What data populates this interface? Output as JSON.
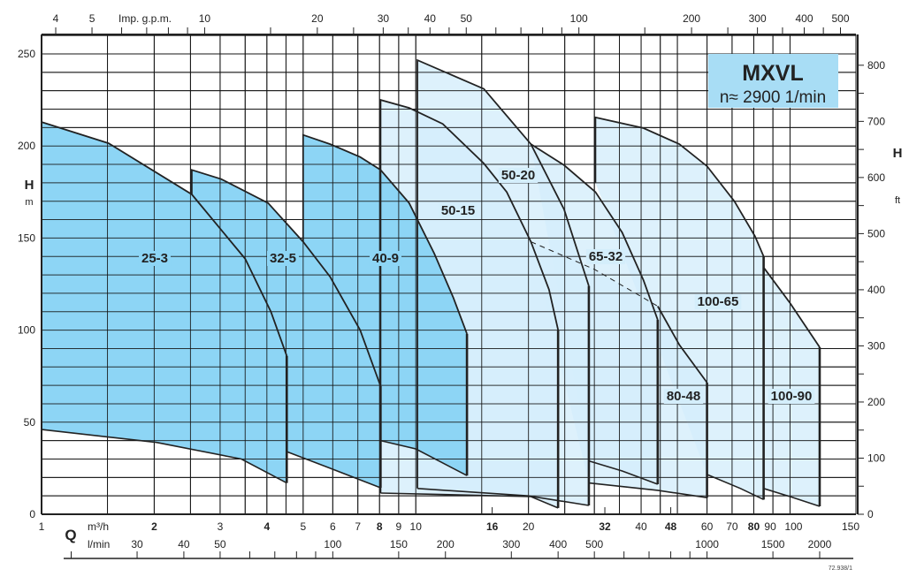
{
  "chart_data": {
    "type": "line",
    "title": "MXVL",
    "subtitle": "n≈ 2900 1/min",
    "x_scale": "log",
    "xlim": [
      1,
      150
    ],
    "ylim": [
      0,
      260
    ],
    "grid": true,
    "colors": {
      "small_pumps_fill": "#8dd5f5",
      "large_pumps_fill": "#d4eefb",
      "box_fill": "#a8ddf5",
      "line": "#222222"
    },
    "axes": {
      "left": {
        "label": "H",
        "unit": "m",
        "ticks": [
          0,
          50,
          100,
          150,
          200,
          250
        ]
      },
      "right": {
        "label": "H",
        "unit": "ft",
        "ticks": [
          0,
          100,
          200,
          300,
          400,
          500,
          600,
          700,
          800
        ]
      },
      "top": {
        "label": "Imp. g.p.m.",
        "ticks": [
          4,
          5,
          10,
          20,
          30,
          40,
          50,
          100,
          200,
          300,
          400,
          500
        ]
      },
      "bottom_q": {
        "label": "Q",
        "unit": "m³/h",
        "ticks": [
          "1",
          "2",
          "3",
          "4",
          "5",
          "6",
          "7",
          "8",
          "9",
          "10",
          "16",
          "20",
          "32",
          "40",
          "48",
          "60",
          "70",
          "80",
          "90",
          "100",
          "150"
        ],
        "bold_ticks": [
          "2",
          "4",
          "8",
          "16",
          "32",
          "48",
          "80"
        ]
      },
      "bottom_lmin": {
        "unit": "l/min",
        "ticks": [
          30,
          40,
          50,
          100,
          150,
          200,
          300,
          400,
          500,
          1000,
          1500,
          2000
        ]
      }
    },
    "series": [
      {
        "name": "25-3",
        "shade": "dark",
        "upper": [
          [
            1,
            213
          ],
          [
            1.51,
            201.5
          ],
          [
            2.52,
            173.7
          ],
          [
            3.5,
            138.7
          ],
          [
            4.1,
            110
          ],
          [
            4.52,
            86
          ]
        ],
        "lower": [
          [
            1,
            46
          ],
          [
            2.03,
            39
          ],
          [
            3.42,
            30
          ],
          [
            4.52,
            17
          ]
        ]
      },
      {
        "name": "32-5",
        "shade": "dark",
        "upper": [
          [
            2.52,
            173.7
          ],
          [
            2.52,
            187
          ],
          [
            3.02,
            182
          ],
          [
            4.03,
            169
          ],
          [
            5.0,
            148
          ],
          [
            5.9,
            129
          ],
          [
            7.1,
            100
          ],
          [
            8.05,
            69.6
          ]
        ],
        "lower": [
          [
            4.52,
            34
          ],
          [
            5.9,
            25
          ],
          [
            8.05,
            14.4
          ]
        ]
      },
      {
        "name": "40-9",
        "shade": "dark",
        "upper": [
          [
            5.0,
            148
          ],
          [
            5.0,
            206
          ],
          [
            5.9,
            201
          ],
          [
            7.1,
            194
          ],
          [
            8.05,
            187
          ],
          [
            9.6,
            169
          ],
          [
            11.2,
            141.6
          ],
          [
            12.6,
            117.6
          ],
          [
            13.7,
            98
          ]
        ],
        "lower": [
          [
            8.05,
            40
          ],
          [
            10,
            35.5
          ],
          [
            13.7,
            21
          ]
        ]
      },
      {
        "name": "50-15",
        "shade": "light",
        "upper": [
          [
            8.05,
            11.5
          ],
          [
            8.05,
            225
          ],
          [
            9.6,
            220.7
          ],
          [
            11.8,
            212
          ],
          [
            15.2,
            190.5
          ],
          [
            17.5,
            175
          ],
          [
            20.3,
            148
          ],
          [
            22.7,
            122
          ],
          [
            24,
            100
          ]
        ],
        "lower": [
          [
            8.05,
            11.5
          ],
          [
            20.3,
            9.6
          ],
          [
            24,
            3.4
          ]
        ]
      },
      {
        "name": "50-20",
        "shade": "light",
        "upper": [
          [
            10.1,
            14
          ],
          [
            10.1,
            246.6
          ],
          [
            15.2,
            231
          ],
          [
            20.3,
            201
          ],
          [
            24.9,
            165.6
          ],
          [
            29,
            124
          ]
        ],
        "lower": [
          [
            10.1,
            14
          ],
          [
            20,
            10
          ],
          [
            29,
            4.8
          ]
        ]
      },
      {
        "name": "65-32",
        "shade": "light",
        "upper": [
          [
            20.3,
            201
          ],
          [
            24.9,
            189.6
          ],
          [
            30.2,
            175
          ],
          [
            35.6,
            153
          ],
          [
            40.6,
            127
          ],
          [
            44.3,
            105.6
          ]
        ],
        "lower": [
          [
            29,
            29
          ],
          [
            35.6,
            23.5
          ],
          [
            44.3,
            16.3
          ]
        ]
      },
      {
        "name": "80-48",
        "shade": "light",
        "hidden_upper": [
          [
            20.3,
            148
          ],
          [
            30,
            133
          ],
          [
            44.3,
            113
          ]
        ],
        "upper": [
          [
            44.3,
            113
          ],
          [
            50.6,
            92
          ],
          [
            60,
            71.5
          ]
        ],
        "lower": [
          [
            29,
            17
          ],
          [
            44.3,
            13
          ],
          [
            60,
            9
          ]
        ]
      },
      {
        "name": "100-65",
        "shade": "light",
        "upper": [
          [
            30.2,
            180
          ],
          [
            30.2,
            215.5
          ],
          [
            40.6,
            209.7
          ],
          [
            50.6,
            201
          ],
          [
            60,
            189
          ],
          [
            71,
            170
          ],
          [
            80.6,
            151
          ],
          [
            85,
            140
          ]
        ],
        "lower": [
          [
            60,
            21.6
          ],
          [
            73.7,
            14
          ],
          [
            85,
            8
          ]
        ]
      },
      {
        "name": "100-90",
        "shade": "light",
        "upper": [
          [
            85,
            134
          ],
          [
            100,
            114.7
          ],
          [
            120,
            90.7
          ]
        ],
        "lower": [
          [
            85,
            14
          ],
          [
            100,
            9.6
          ],
          [
            120,
            4.3
          ]
        ]
      }
    ],
    "footnote": "72.938/1"
  }
}
